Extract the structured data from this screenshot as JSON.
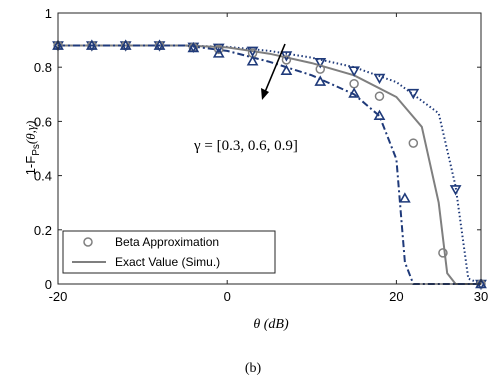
{
  "chart_data": {
    "type": "line",
    "xlabel": "θ (dB)",
    "ylabel": "1-F_Ps(θ,γ)",
    "ylabel_main": "1-F",
    "ylabel_sub": "Ps",
    "ylabel_args": "(θ,γ)",
    "xlim": [
      -20,
      30
    ],
    "ylim": [
      0,
      1
    ],
    "xticks": [
      -20,
      0,
      20,
      30
    ],
    "xtick_labels": [
      "-20",
      "0",
      "20",
      "30"
    ],
    "yticks": [
      0,
      0.2,
      0.4,
      0.6,
      0.8,
      1
    ],
    "ytick_labels": [
      "0",
      "0.2",
      "0.4",
      "0.6",
      "0.8",
      "1"
    ],
    "grid": false,
    "legend_position": "bottom-left",
    "legend": [
      {
        "label": "Beta Approximation",
        "style": "circle-marker",
        "color": "#7f7f7f"
      },
      {
        "label": "Exact Value (Simu.)",
        "style": "solid-line",
        "color": "#7f7f7f"
      }
    ],
    "annotation": "γ = [0.3, 0.6, 0.9]",
    "caption": "(b)",
    "series": [
      {
        "gamma": 0.3,
        "line_style": "dotted",
        "marker": "triangle-down",
        "color": "#1f3a7a",
        "exact_x": [
          -20,
          -15,
          -10,
          -5,
          0,
          5,
          10,
          15,
          20,
          25,
          27,
          28.5,
          30
        ],
        "exact_y": [
          0.88,
          0.88,
          0.88,
          0.88,
          0.875,
          0.86,
          0.835,
          0.8,
          0.745,
          0.63,
          0.36,
          0.02,
          0
        ],
        "approx_x": [
          -20,
          -16,
          -12,
          -8,
          -4,
          -1,
          3,
          7,
          11,
          15,
          18,
          22,
          27,
          30
        ],
        "approx_y": [
          0.88,
          0.88,
          0.88,
          0.88,
          0.875,
          0.871,
          0.86,
          0.843,
          0.818,
          0.787,
          0.76,
          0.704,
          0.349,
          0
        ]
      },
      {
        "gamma": 0.6,
        "line_style": "solid",
        "marker": "circle",
        "color": "#7f7f7f",
        "exact_x": [
          -20,
          -15,
          -10,
          -5,
          0,
          5,
          10,
          15,
          20,
          23,
          25,
          26,
          27,
          30
        ],
        "exact_y": [
          0.88,
          0.88,
          0.88,
          0.88,
          0.873,
          0.85,
          0.815,
          0.77,
          0.69,
          0.58,
          0.3,
          0.04,
          0,
          0
        ],
        "approx_x": [
          -20,
          -16,
          -12,
          -8,
          -4,
          -1,
          3,
          7,
          11,
          15,
          18,
          22,
          25.5,
          30
        ],
        "approx_y": [
          0.88,
          0.88,
          0.88,
          0.88,
          0.873,
          0.866,
          0.852,
          0.827,
          0.793,
          0.739,
          0.693,
          0.52,
          0.115,
          0
        ]
      },
      {
        "gamma": 0.9,
        "line_style": "dash-dot",
        "marker": "triangle-up",
        "color": "#1f3a7a",
        "exact_x": [
          -20,
          -15,
          -10,
          -5,
          0,
          5,
          10,
          15,
          18,
          20,
          21,
          22,
          30
        ],
        "exact_y": [
          0.88,
          0.88,
          0.88,
          0.88,
          0.86,
          0.82,
          0.77,
          0.7,
          0.62,
          0.46,
          0.08,
          0,
          0
        ],
        "approx_x": [
          -20,
          -16,
          -12,
          -8,
          -4,
          -1,
          3,
          7,
          11,
          15,
          18,
          21,
          30
        ],
        "approx_y": [
          0.88,
          0.88,
          0.88,
          0.88,
          0.871,
          0.851,
          0.822,
          0.787,
          0.747,
          0.703,
          0.621,
          0.316,
          0
        ]
      }
    ]
  }
}
